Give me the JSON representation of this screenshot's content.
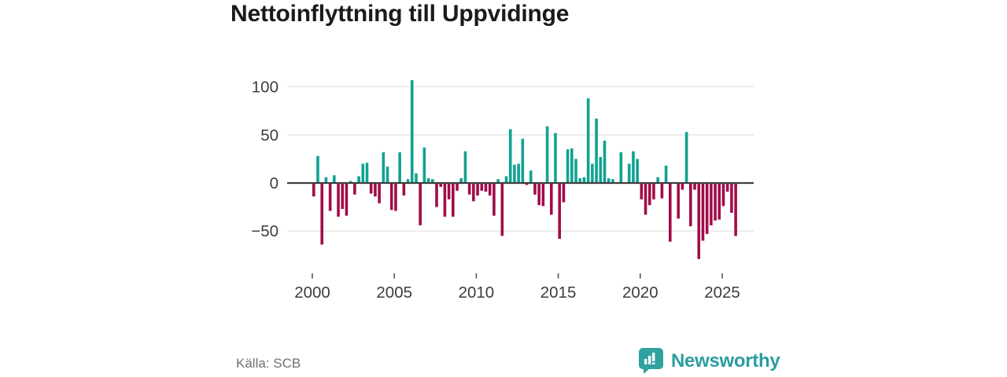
{
  "title": "Nettoinflyttning till Uppvidinge",
  "source": "Källa: SCB",
  "brand": {
    "name": "Newsworthy",
    "icon": "speech-bubble-with-bar-chart"
  },
  "colors": {
    "positive_bar": "#10a292",
    "negative_bar": "#a10c49",
    "brand_teal": "#2b9da0",
    "title_text": "#1a1a1a",
    "axis_text": "#3d3d3d",
    "grid_line": "#e2e2e2",
    "zero_line": "#3f3f3f",
    "source_text": "#707070"
  },
  "chart_data": {
    "type": "bar",
    "title": "Nettoinflyttning till Uppvidinge",
    "frequency": "quarterly",
    "start": "2000 Q1",
    "end": "2025 Q4",
    "xlabel": "",
    "ylabel": "",
    "ylim": [
      -85,
      115
    ],
    "grid": true,
    "legend": "none",
    "y_ticks": [
      100,
      50,
      0,
      -50
    ],
    "x_tick_years": [
      2000,
      2005,
      2010,
      2015,
      2020,
      2025
    ],
    "values": [
      -14,
      28,
      -64,
      6,
      -29,
      8,
      -35,
      -27,
      -34,
      2,
      -12,
      7,
      20,
      21,
      -11,
      -14,
      -21,
      32,
      17,
      -28,
      -29,
      32,
      -13,
      4,
      107,
      10,
      -44,
      37,
      5,
      4,
      -25,
      -4,
      -35,
      -17,
      -35,
      -8,
      5,
      33,
      -12,
      -19,
      -13,
      -8,
      -9,
      -13,
      -34,
      4,
      -55,
      7,
      56,
      19,
      20,
      46,
      -2,
      13,
      -12,
      -23,
      -24,
      59,
      -33,
      52,
      -58,
      -20,
      35,
      36,
      25,
      5,
      6,
      88,
      20,
      67,
      27,
      44,
      5,
      4,
      0,
      32,
      0,
      20,
      33,
      25,
      -17,
      -33,
      -23,
      -17,
      6,
      -16,
      18,
      -61,
      0,
      -37,
      -7,
      53,
      -45,
      -7,
      -79,
      -60,
      -53,
      -44,
      -39,
      -38,
      -24,
      -9,
      -31,
      -55
    ]
  }
}
